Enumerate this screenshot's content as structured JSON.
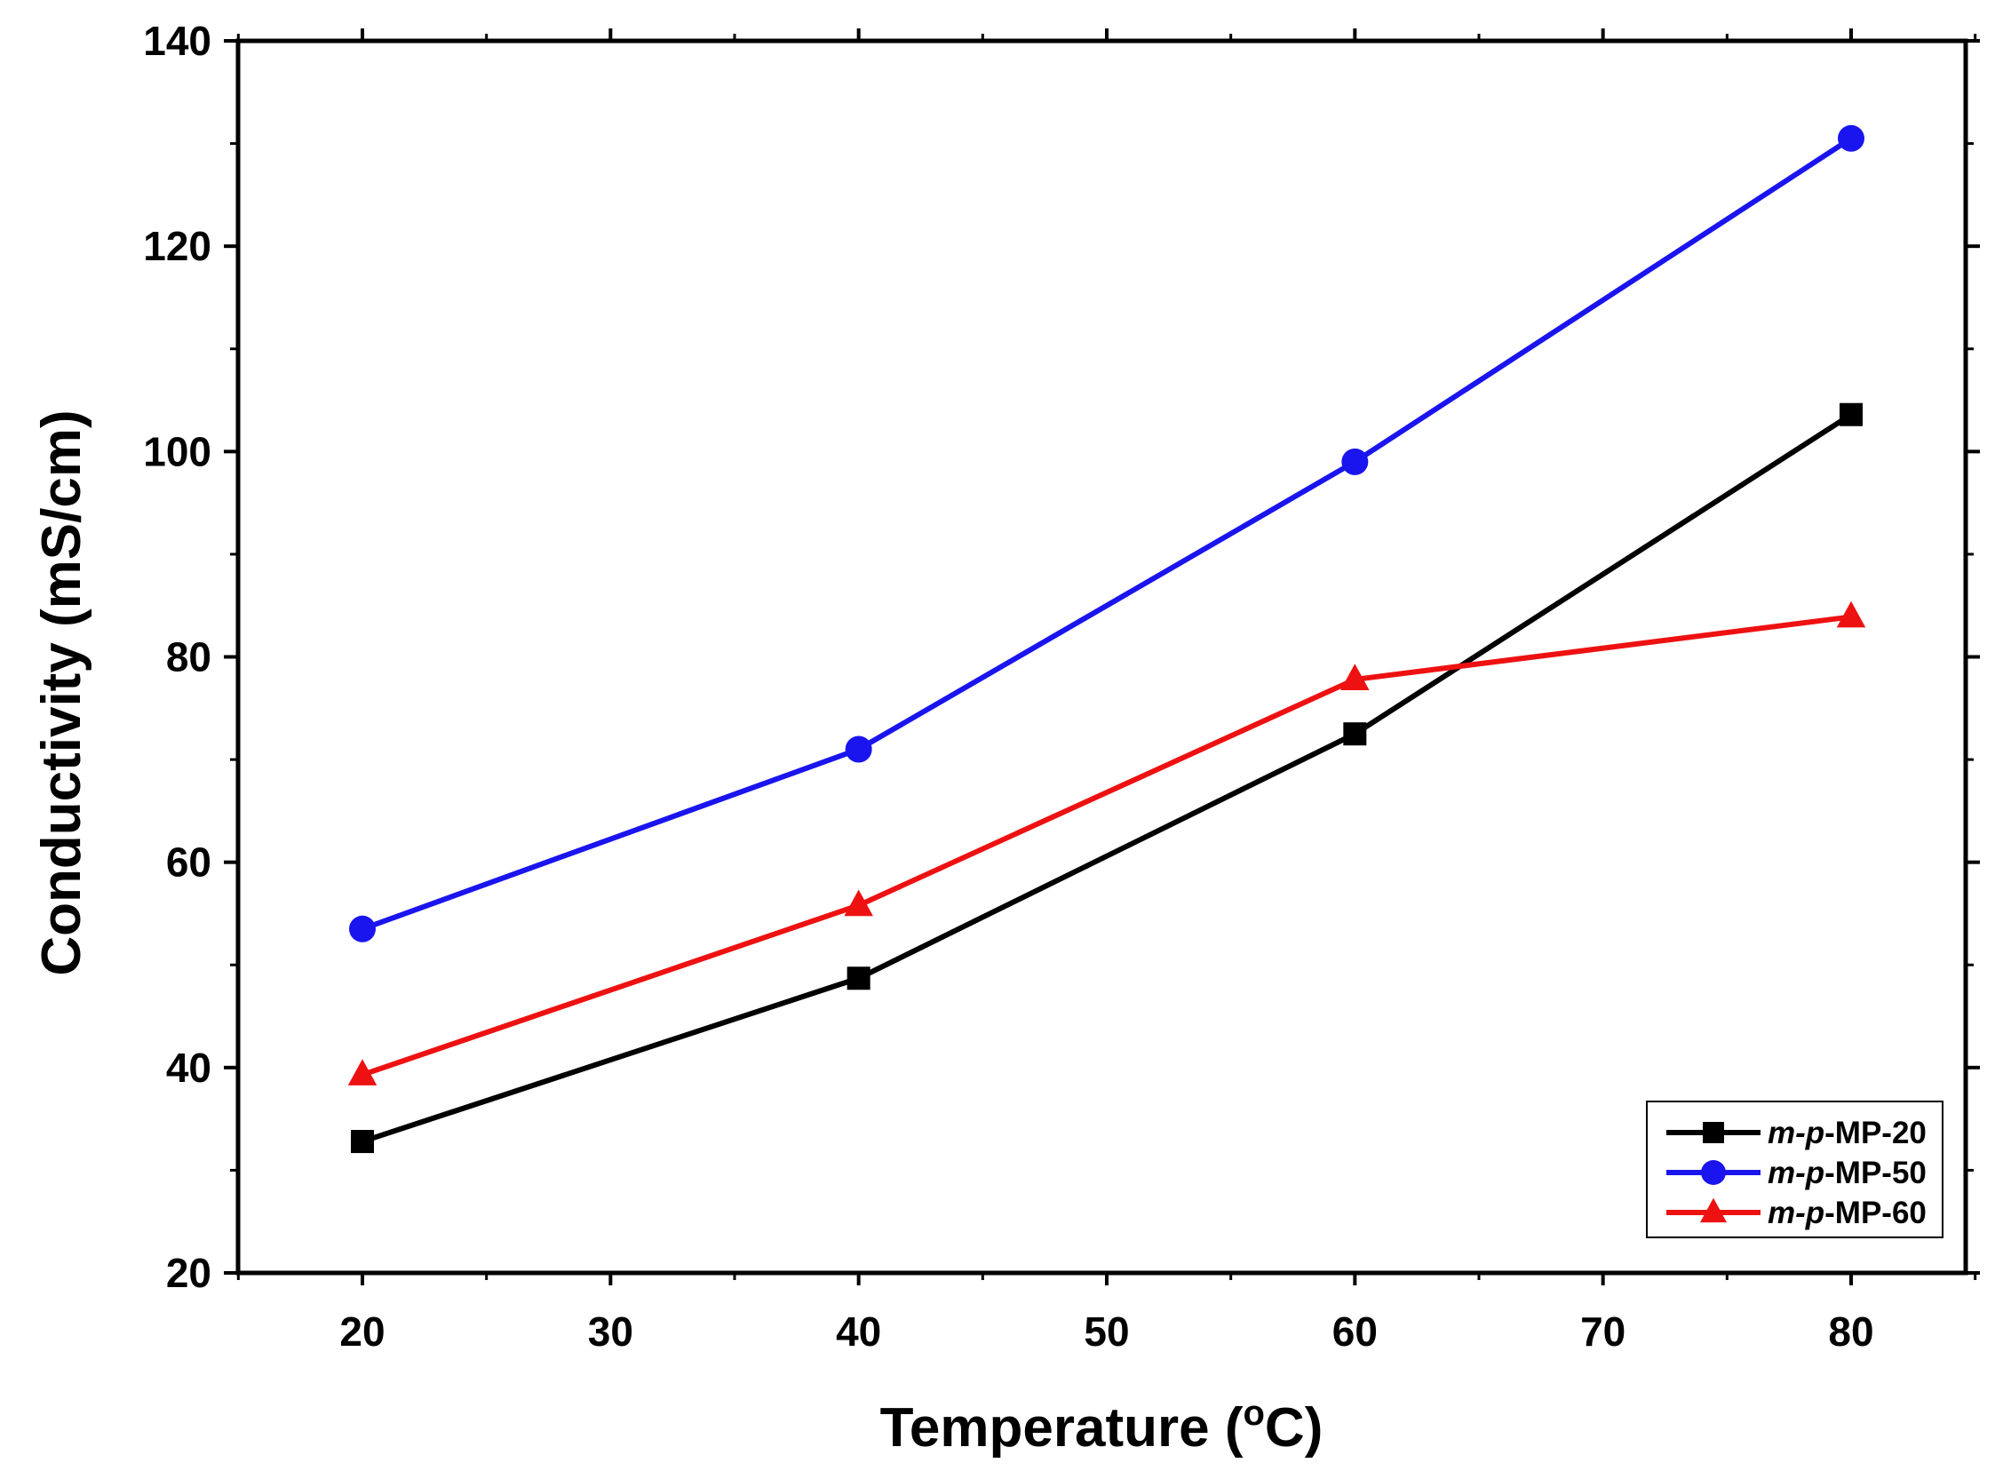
{
  "chart_data": {
    "type": "line",
    "title": "",
    "xlabel": "Temperature (",
    "xlabel_sup": "o",
    "xlabel_tail": "C)",
    "ylabel": "Conductivity (mS/cm)",
    "xlim": [
      15,
      85
    ],
    "ylim": [
      20,
      140
    ],
    "x_ticks": [
      "20",
      "30",
      "40",
      "50",
      "60",
      "70",
      "80"
    ],
    "y_ticks": [
      "20",
      "40",
      "60",
      "80",
      "100",
      "120",
      "140"
    ],
    "x": [
      20,
      40,
      60,
      80
    ],
    "legend_position": "bottom-right",
    "series": [
      {
        "name": "m-p-MP-20",
        "name_italic": "m-p",
        "name_rest": "-MP-20",
        "marker": "square",
        "color": "#000000",
        "values": [
          32.8,
          48.7,
          72.5,
          103.6
        ]
      },
      {
        "name": "m-p-MP-50",
        "name_italic": "m-p",
        "name_rest": "-MP-50",
        "marker": "circle",
        "color": "#1a14ee",
        "values": [
          53.5,
          71.0,
          99.0,
          130.5
        ]
      },
      {
        "name": "m-p-MP-60",
        "name_italic": "m-p",
        "name_rest": "-MP-60",
        "marker": "triangle",
        "color": "#ee1111",
        "values": [
          39.3,
          55.8,
          77.8,
          83.9
        ]
      }
    ]
  }
}
